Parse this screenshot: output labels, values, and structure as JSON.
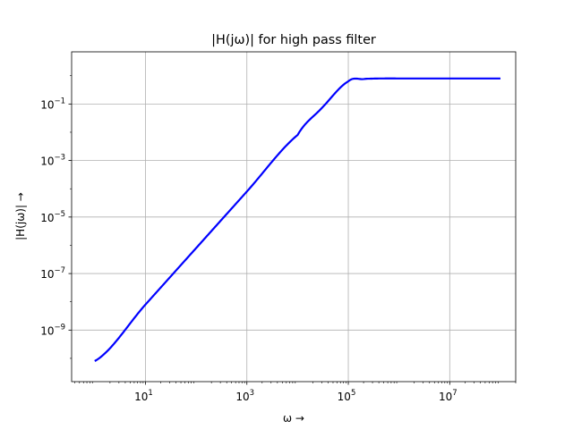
{
  "chart_data": {
    "type": "line",
    "title": "|H(jω)| for high pass filter",
    "xlabel": "ω  →",
    "ylabel": "|H(jω)| →",
    "xscale": "log",
    "yscale": "log",
    "xlim": [
      0.35,
      200000000
    ],
    "ylim": [
      1.5e-11,
      7
    ],
    "grid": true,
    "xticks": [
      {
        "value": 10,
        "base": "10",
        "exp": "1"
      },
      {
        "value": 1000,
        "base": "10",
        "exp": "3"
      },
      {
        "value": 100000,
        "base": "10",
        "exp": "5"
      },
      {
        "value": 10000000,
        "base": "10",
        "exp": "7"
      }
    ],
    "yticks": [
      {
        "value": 1e-09,
        "base": "10",
        "exp": "−9"
      },
      {
        "value": 1e-07,
        "base": "10",
        "exp": "−7"
      },
      {
        "value": 1e-05,
        "base": "10",
        "exp": "−5"
      },
      {
        "value": 0.001,
        "base": "10",
        "exp": "−3"
      },
      {
        "value": 0.1,
        "base": "10",
        "exp": "−1"
      }
    ],
    "series": [
      {
        "color": "#0000ff",
        "x": [
          1,
          10,
          100,
          1000,
          10000,
          30000,
          100000,
          200000,
          300000,
          500000,
          1000000,
          10000000,
          100000000
        ],
        "y": [
          8e-11,
          8e-09,
          8e-07,
          8e-05,
          0.008,
          0.072,
          0.63,
          0.76,
          0.79,
          0.8,
          0.8,
          0.8,
          0.8
        ]
      }
    ]
  }
}
